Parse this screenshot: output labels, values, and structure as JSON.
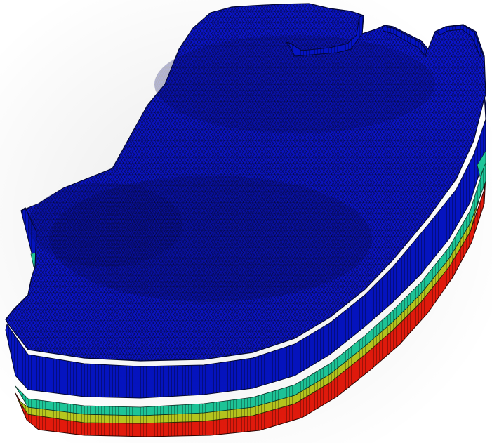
{
  "scene": {
    "description_visible_text": "",
    "background_color": "#ffffff",
    "mesh_line_color": "#101018",
    "layers": [
      {
        "name": "top-surface",
        "color": "#0a14c8"
      },
      {
        "name": "side-layer-1",
        "color": "#0614c0"
      },
      {
        "name": "side-layer-2",
        "color": "#1fc89a"
      },
      {
        "name": "side-layer-3",
        "color": "#b8c81e"
      },
      {
        "name": "side-layer-4",
        "color": "#e41a0c"
      }
    ]
  }
}
